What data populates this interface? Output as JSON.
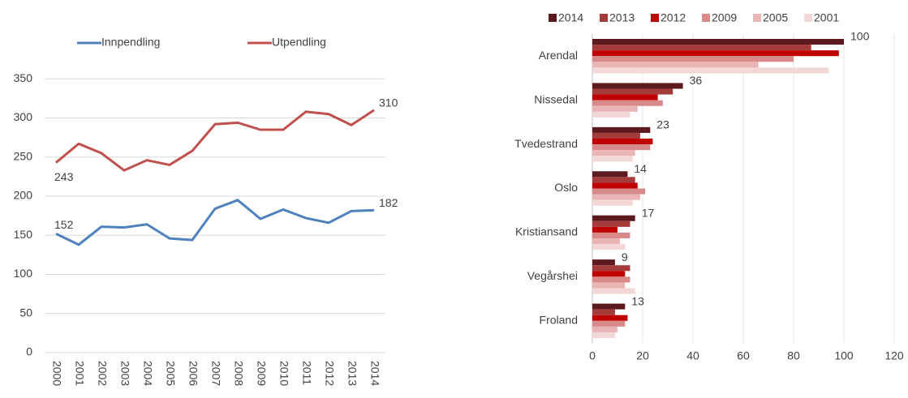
{
  "chart_data": [
    {
      "type": "line",
      "x": [
        "2000",
        "2001",
        "2002",
        "2003",
        "2004",
        "2005",
        "2006",
        "2007",
        "2008",
        "2009",
        "2010",
        "2011",
        "2012",
        "2013",
        "2014"
      ],
      "series": [
        {
          "name": "Innpendling",
          "color": "#4f81bd",
          "values": [
            152,
            138,
            161,
            160,
            164,
            146,
            144,
            184,
            195,
            171,
            183,
            172,
            166,
            181,
            182
          ]
        },
        {
          "name": "Utpendling",
          "color": "#c0504d",
          "values": [
            243,
            267,
            255,
            233,
            246,
            240,
            258,
            292,
            294,
            285,
            285,
            308,
            305,
            291,
            310
          ]
        }
      ],
      "ylim": [
        0,
        370
      ],
      "yticks": [
        0,
        50,
        100,
        150,
        200,
        250,
        300,
        350
      ],
      "grid": true,
      "legend": "top"
    },
    {
      "type": "hbar",
      "categories": [
        "Arendal",
        "Nissedal",
        "Tvedestrand",
        "Oslo",
        "Kristiansand",
        "Vegårshei",
        "Froland"
      ],
      "series": [
        {
          "name": "2014",
          "color": "#5c1a1e",
          "values": [
            100,
            36,
            23,
            14,
            17,
            9,
            13
          ]
        },
        {
          "name": "2013",
          "color": "#a33b3b",
          "values": [
            87,
            32,
            19,
            17,
            15,
            15,
            9
          ]
        },
        {
          "name": "2012",
          "color": "#c00000",
          "values": [
            98,
            26,
            24,
            18,
            10,
            13,
            14
          ]
        },
        {
          "name": "2009",
          "color": "#d88a8a",
          "values": [
            80,
            28,
            23,
            21,
            15,
            15,
            13
          ]
        },
        {
          "name": "2005",
          "color": "#e8b4b4",
          "values": [
            66,
            18,
            17,
            19,
            11,
            13,
            10
          ]
        },
        {
          "name": "2001",
          "color": "#f3d6d6",
          "values": [
            94,
            15,
            16,
            16,
            13,
            17,
            9
          ]
        }
      ],
      "xlim": [
        0,
        120
      ],
      "xticks": [
        0,
        20,
        40,
        60,
        80,
        100,
        120
      ],
      "grid": true,
      "legend": "top"
    }
  ]
}
